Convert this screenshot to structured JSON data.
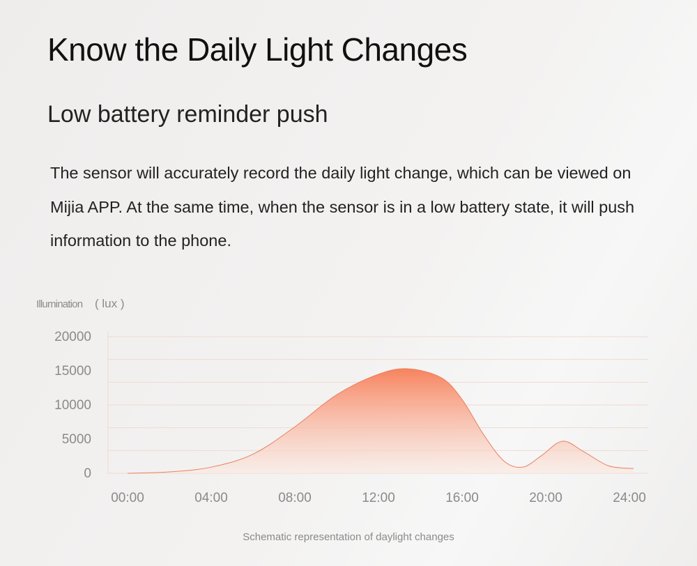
{
  "title": "Know the Daily Light Changes",
  "subtitle": "Low battery reminder push",
  "body": "The sensor will accurately record the daily light change, which can be viewed on Mijia APP. At the same time, when the sensor is in a low battery state, it will push information to the phone.",
  "colors": {
    "fill_top": "#f7835e",
    "fill_bottom": "#fbe9e2",
    "grid": "#f0d9d2"
  },
  "chart_data": {
    "type": "area",
    "title": "",
    "ylabel": "Illumination",
    "ylabel_unit": "( lux )",
    "xlabel": "Schematic representation of daylight changes",
    "ylim": [
      0,
      20000
    ],
    "xlim": [
      0,
      24
    ],
    "y_ticks": [
      "20000",
      "15000",
      "10000",
      "5000",
      "0"
    ],
    "y_tick_values": [
      20000,
      15000,
      10000,
      5000,
      0
    ],
    "x_ticks": [
      "00:00",
      "04:00",
      "08:00",
      "12:00",
      "16:00",
      "20:00",
      "24:00"
    ],
    "x_tick_values": [
      0,
      4,
      8,
      12,
      16,
      20,
      24
    ],
    "grid": true,
    "x": [
      0,
      2,
      4,
      6,
      8,
      10,
      12,
      13.4,
      15,
      16,
      17,
      18,
      18.9,
      19.8,
      20.8,
      21.8,
      23,
      24.2
    ],
    "y": [
      0,
      200,
      900,
      2800,
      6800,
      11500,
      14500,
      15300,
      14000,
      10800,
      5800,
      1800,
      900,
      2600,
      4700,
      3200,
      1100,
      700
    ]
  }
}
